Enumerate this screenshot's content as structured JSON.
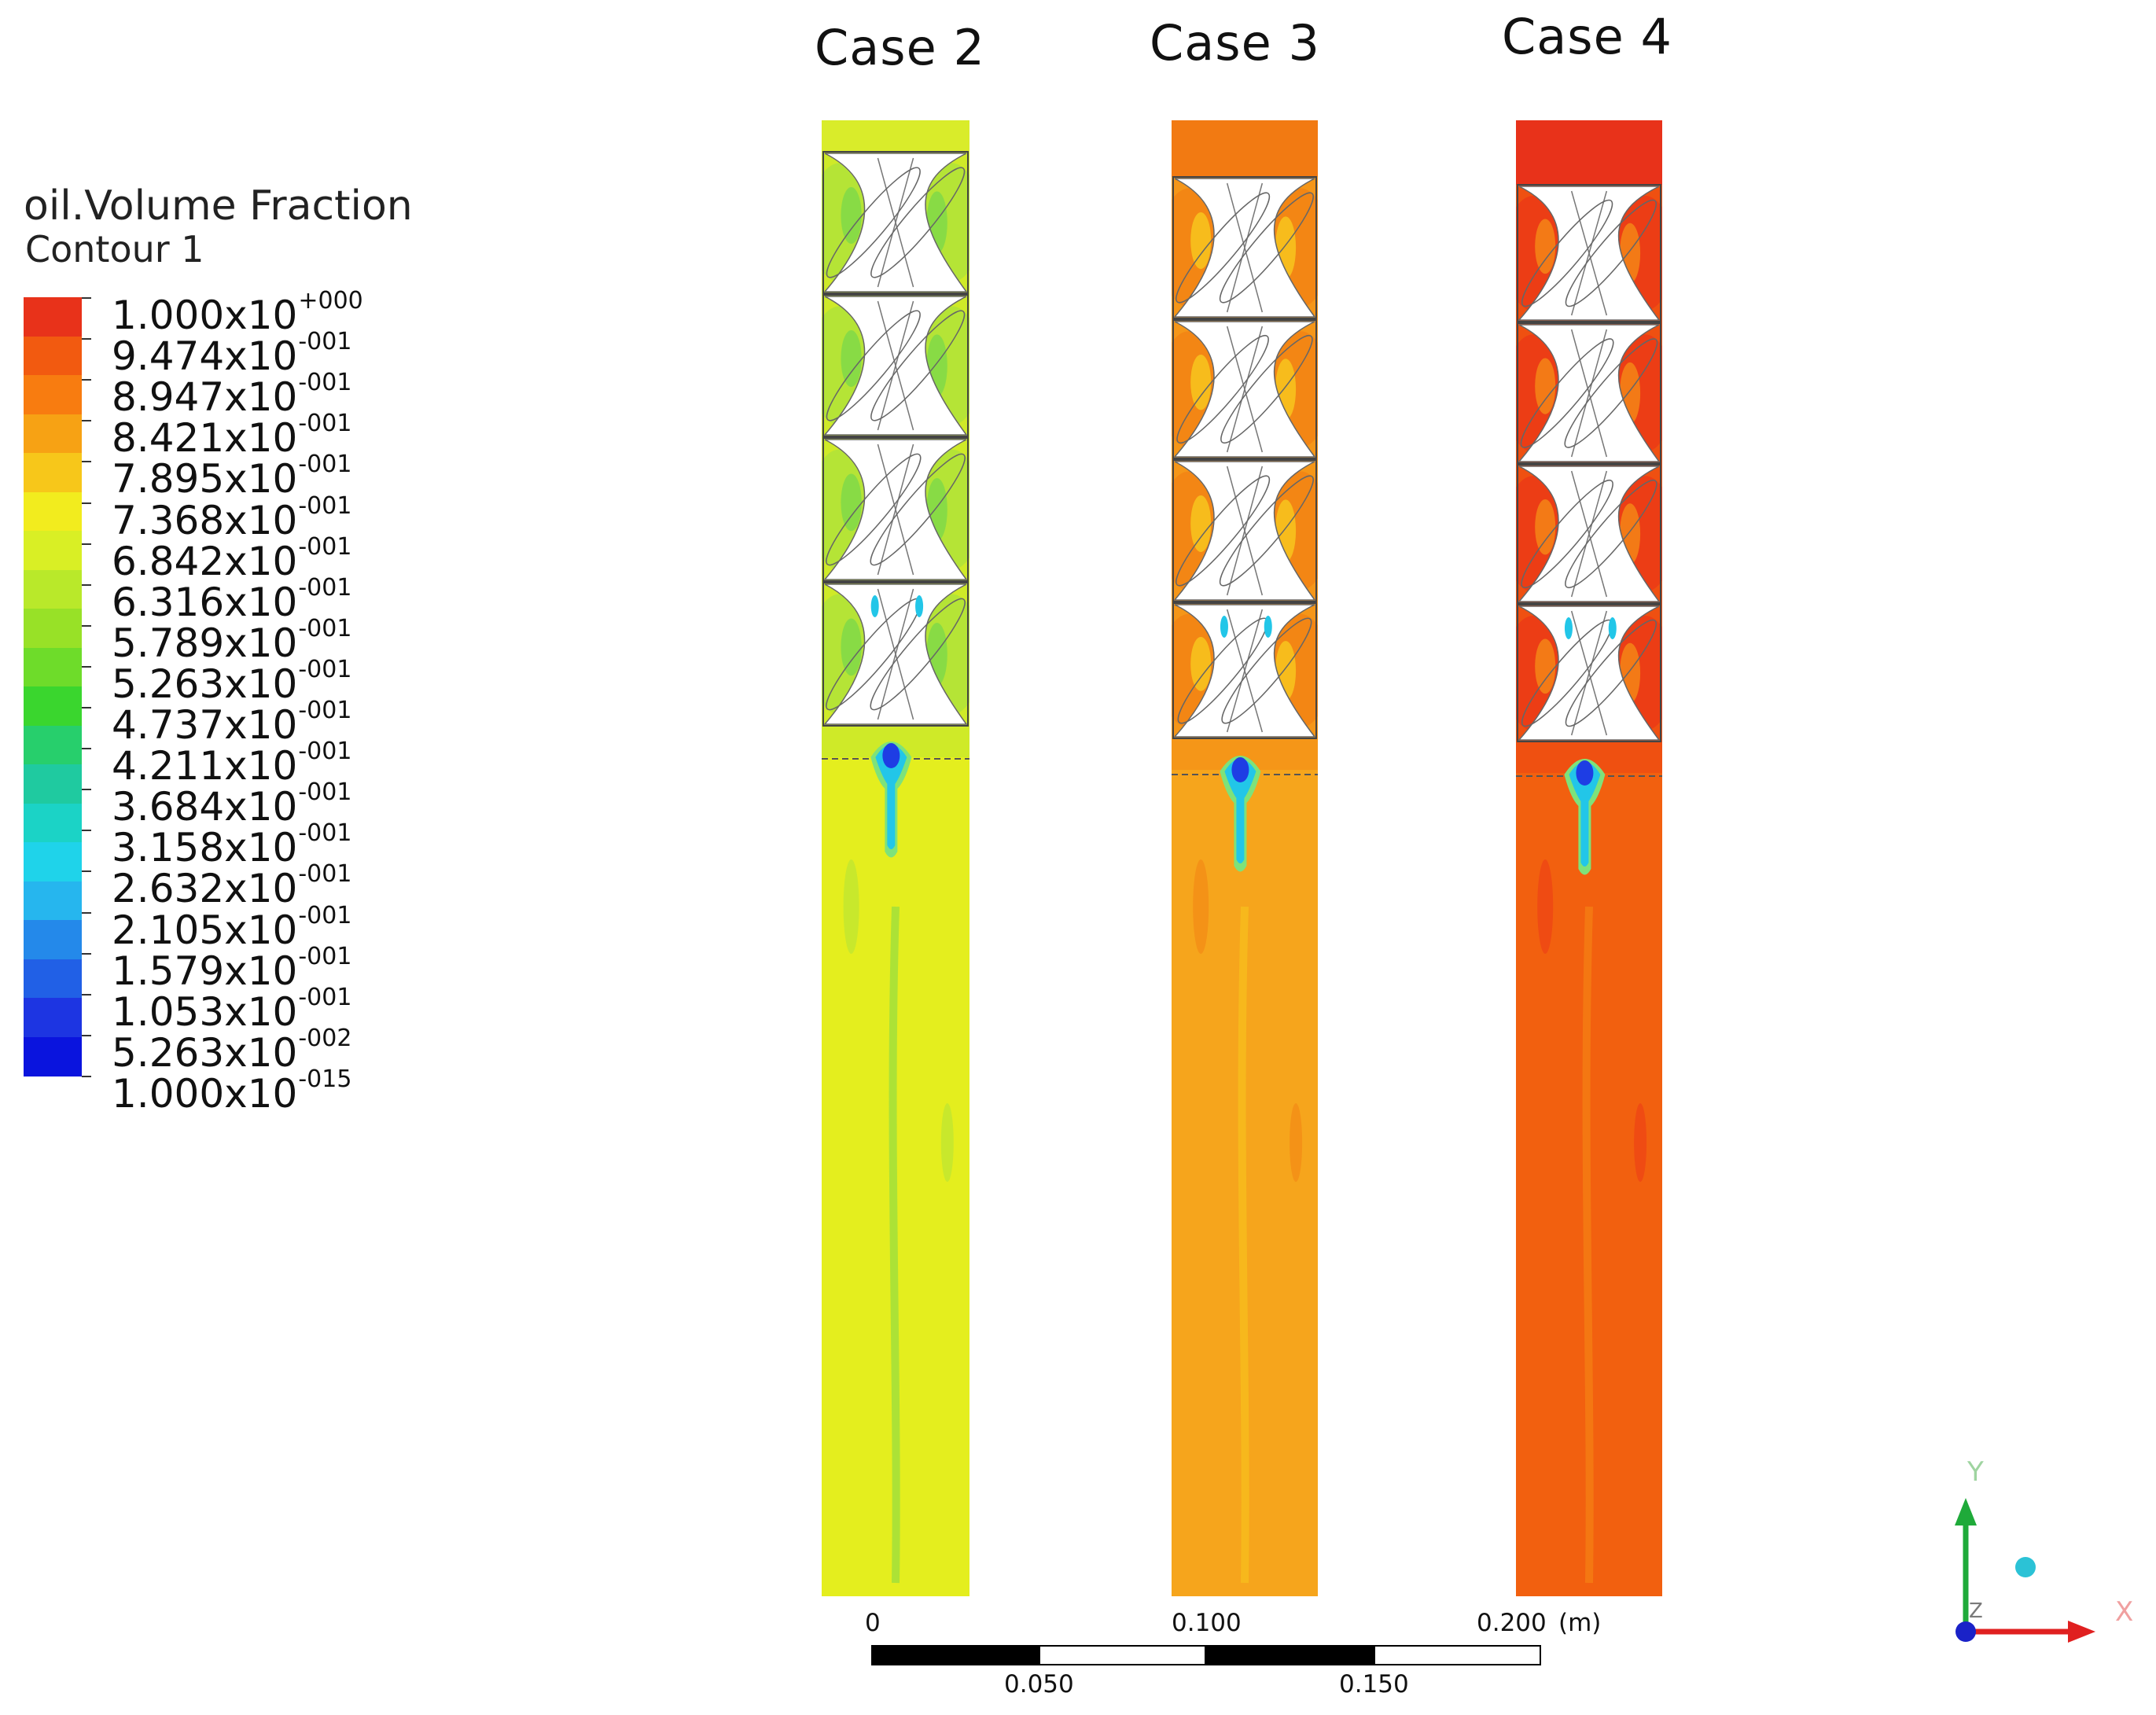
{
  "case_titles": [
    "Case 2",
    "Case 3",
    "Case 4"
  ],
  "legend": {
    "title": "oil.Volume Fraction",
    "subtitle": "Contour 1",
    "colors": [
      "#e8321a",
      "#f25a10",
      "#f87c10",
      "#f7a214",
      "#f7c71a",
      "#f2ec1e",
      "#d9ef25",
      "#b9e92a",
      "#98e127",
      "#6edc2a",
      "#3ad62e",
      "#27cf6c",
      "#1fcaa0",
      "#1bd3c6",
      "#1fd3ea",
      "#26b6ee",
      "#2489ea",
      "#2160e6",
      "#1d35e2",
      "#0a14de"
    ],
    "levels": [
      {
        "mantissa": "1.000x10",
        "exponent": "+000"
      },
      {
        "mantissa": "9.474x10",
        "exponent": "-001"
      },
      {
        "mantissa": "8.947x10",
        "exponent": "-001"
      },
      {
        "mantissa": "8.421x10",
        "exponent": "-001"
      },
      {
        "mantissa": "7.895x10",
        "exponent": "-001"
      },
      {
        "mantissa": "7.368x10",
        "exponent": "-001"
      },
      {
        "mantissa": "6.842x10",
        "exponent": "-001"
      },
      {
        "mantissa": "6.316x10",
        "exponent": "-001"
      },
      {
        "mantissa": "5.789x10",
        "exponent": "-001"
      },
      {
        "mantissa": "5.263x10",
        "exponent": "-001"
      },
      {
        "mantissa": "4.737x10",
        "exponent": "-001"
      },
      {
        "mantissa": "4.211x10",
        "exponent": "-001"
      },
      {
        "mantissa": "3.684x10",
        "exponent": "-001"
      },
      {
        "mantissa": "3.158x10",
        "exponent": "-001"
      },
      {
        "mantissa": "2.632x10",
        "exponent": "-001"
      },
      {
        "mantissa": "2.105x10",
        "exponent": "-001"
      },
      {
        "mantissa": "1.579x10",
        "exponent": "-001"
      },
      {
        "mantissa": "1.053x10",
        "exponent": "-001"
      },
      {
        "mantissa": "5.263x10",
        "exponent": "-002"
      },
      {
        "mantissa": "1.000x10",
        "exponent": "-015"
      }
    ]
  },
  "cases": [
    {
      "name": "Case 2",
      "bulk_color": "#e4ee1e",
      "patch_color": "#b5e436",
      "accent_color": "#7dd84a",
      "top_color": "#d9ec2a"
    },
    {
      "name": "Case 3",
      "bulk_color": "#f6a51c",
      "patch_color": "#f38614",
      "accent_color": "#f7c91e",
      "top_color": "#f27a12"
    },
    {
      "name": "Case 4",
      "bulk_color": "#f2600f",
      "patch_color": "#ec3d15",
      "accent_color": "#f58a16",
      "top_color": "#e8321a"
    }
  ],
  "jet_colors": {
    "core": "#1e3de4",
    "mid": "#22c6e8",
    "edge": "#7ee27a"
  },
  "scale_bar": {
    "top_labels": [
      "0",
      "0.100",
      "0.200"
    ],
    "bottom_labels": [
      "0.050",
      "0.150"
    ],
    "unit": "(m)"
  },
  "axes": {
    "y_label": "Y",
    "x_label": "X",
    "z_label": "Z"
  }
}
